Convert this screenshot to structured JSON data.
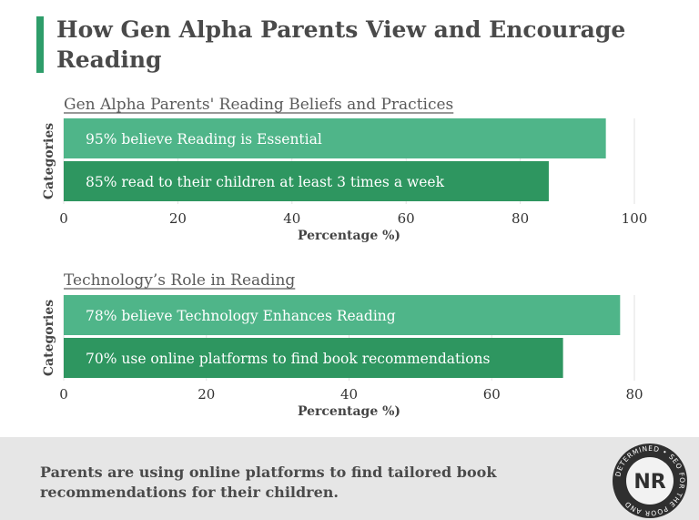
{
  "header": {
    "title": "How Gen Alpha Parents View and Encourage Reading"
  },
  "footer": {
    "text": "Parents are using online platforms to find tailored book recommendations for their children.",
    "logo_initials": "NR",
    "logo_ring_text": "DETERMINED • SEO FOR THE POOR AND"
  },
  "colors": {
    "accent": "#2e9d6a",
    "bar_light": "#4fb589",
    "bar_dark": "#2e9660"
  },
  "chart_data": [
    {
      "type": "bar",
      "orientation": "horizontal",
      "title": "Gen Alpha Parents' Reading Beliefs and Practices",
      "xlabel": "Percentage %)",
      "ylabel": "Categories",
      "categories": [
        "95% believe Reading is Essential",
        "85% read to their children at least 3 times a week"
      ],
      "values": [
        95,
        85
      ],
      "xlim": [
        0,
        100
      ],
      "xticks": [
        0,
        20,
        40,
        60,
        80,
        100
      ],
      "grid": true
    },
    {
      "type": "bar",
      "orientation": "horizontal",
      "title": "Technology’s Role in Reading",
      "xlabel": "Percentage %)",
      "ylabel": "Categories",
      "categories": [
        "78% believe Technology Enhances Reading",
        "70% use online platforms to find book recommendations"
      ],
      "values": [
        78,
        70
      ],
      "xlim": [
        0,
        80
      ],
      "xticks": [
        0,
        20,
        40,
        60,
        80
      ],
      "grid": true
    }
  ]
}
